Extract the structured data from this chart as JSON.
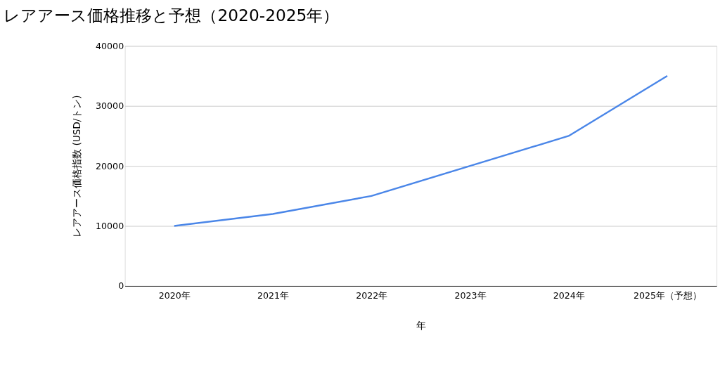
{
  "chart_data": {
    "type": "line",
    "title": "レアアース価格推移と予想（2020-2025年）",
    "xlabel": "年",
    "ylabel": "レアアース価格指数 (USD/トン)",
    "categories": [
      "2020年",
      "2021年",
      "2022年",
      "2023年",
      "2024年",
      "2025年（予想）"
    ],
    "series": [
      {
        "color": "#4a86e8",
        "values": [
          10000,
          12000,
          15000,
          20000,
          25000,
          35000
        ]
      }
    ],
    "ylim": [
      0,
      40000
    ],
    "yticks": [
      0,
      10000,
      20000,
      30000,
      40000
    ],
    "grid": "y",
    "legend": false,
    "marker": "none",
    "line_style": "solid"
  }
}
